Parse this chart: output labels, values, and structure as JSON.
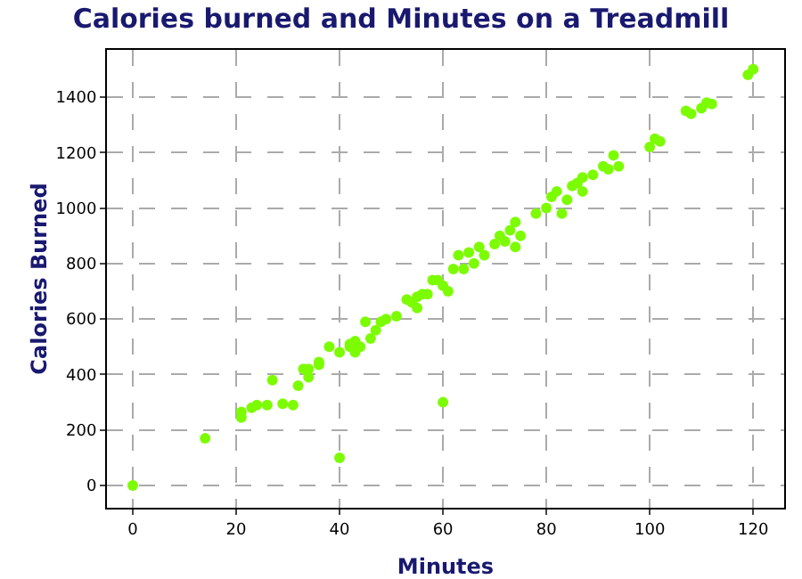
{
  "chart_data": {
    "type": "scatter",
    "title": "Calories burned and Minutes on a Treadmill",
    "xlabel": "Minutes",
    "ylabel": "Calories Burned",
    "x": [
      0,
      14,
      21,
      21,
      23,
      24,
      27,
      26,
      29,
      31,
      32,
      33,
      34,
      34,
      36,
      36,
      38,
      40,
      40,
      42,
      42,
      43,
      43,
      44,
      45,
      46,
      47,
      48,
      49,
      51,
      53,
      54,
      55,
      55,
      56,
      57,
      58,
      59,
      60,
      60,
      61,
      62,
      63,
      64,
      65,
      66,
      67,
      68,
      70,
      71,
      72,
      73,
      74,
      74,
      75,
      78,
      80,
      81,
      82,
      83,
      84,
      85,
      86,
      87,
      87,
      89,
      91,
      92,
      93,
      94,
      100,
      101,
      102,
      107,
      108,
      110,
      111,
      112,
      119,
      120
    ],
    "series": [
      {
        "color": "#7cfc00",
        "values": [
          0,
          170,
          245,
          265,
          280,
          290,
          380,
          290,
          295,
          290,
          360,
          420,
          390,
          420,
          435,
          445,
          500,
          100,
          480,
          500,
          510,
          480,
          520,
          500,
          590,
          530,
          560,
          590,
          600,
          610,
          670,
          660,
          640,
          680,
          690,
          690,
          740,
          740,
          300,
          720,
          700,
          780,
          830,
          780,
          840,
          800,
          860,
          830,
          870,
          900,
          880,
          920,
          950,
          860,
          900,
          980,
          1000,
          1040,
          1060,
          980,
          1030,
          1080,
          1090,
          1110,
          1060,
          1120,
          1150,
          1140,
          1190,
          1150,
          1220,
          1250,
          1240,
          1350,
          1340,
          1360,
          1380,
          1375,
          1480,
          1500
        ]
      }
    ],
    "xlim": [
      -5,
      126
    ],
    "xticks": [
      0,
      20,
      40,
      60,
      80,
      100,
      120
    ],
    "ylim": [
      -80,
      1570
    ],
    "yticks": [
      0,
      200,
      400,
      600,
      800,
      1000,
      1200,
      1400
    ],
    "grid": true,
    "marker": "circle"
  }
}
